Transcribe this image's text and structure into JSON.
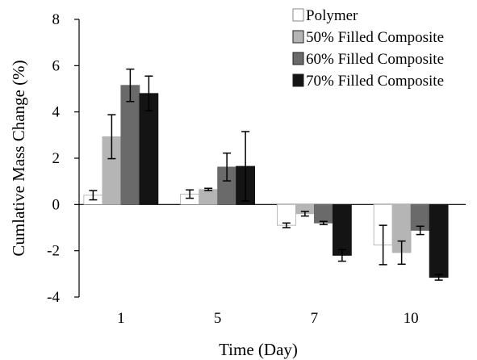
{
  "chart_data": {
    "type": "bar",
    "title": "",
    "xlabel": "Time (Day)",
    "ylabel": "Cumlative Mass Change (%)",
    "categories": [
      "1",
      "5",
      "7",
      "10"
    ],
    "ylim": [
      -4,
      8
    ],
    "yticks": [
      "8",
      "6",
      "4",
      "2",
      "0",
      "-2",
      "-4"
    ],
    "ytick_values": [
      8,
      6,
      4,
      2,
      0,
      -2,
      -4
    ],
    "grid": false,
    "legend_position": "top-right",
    "series": [
      {
        "name": "Polymer",
        "values": [
          0.4,
          0.45,
          -0.9,
          -1.75
        ],
        "errors": [
          0.2,
          0.18,
          0.1,
          0.85
        ],
        "color": "#ffffff"
      },
      {
        "name": "50% Filled Composite",
        "values": [
          2.93,
          0.65,
          -0.4,
          -2.08
        ],
        "errors": [
          0.95,
          0.05,
          0.1,
          0.5
        ],
        "color": "#b5b5b5"
      },
      {
        "name": "60% Filled Composite",
        "values": [
          5.15,
          1.62,
          -0.8,
          -1.12
        ],
        "errors": [
          0.7,
          0.6,
          0.07,
          0.18
        ],
        "color": "#6a6a6a"
      },
      {
        "name": "70% Filled Composite",
        "values": [
          4.8,
          1.65,
          -2.2,
          -3.15
        ],
        "errors": [
          0.75,
          1.5,
          0.25,
          0.12
        ],
        "color": "#141414"
      }
    ]
  }
}
